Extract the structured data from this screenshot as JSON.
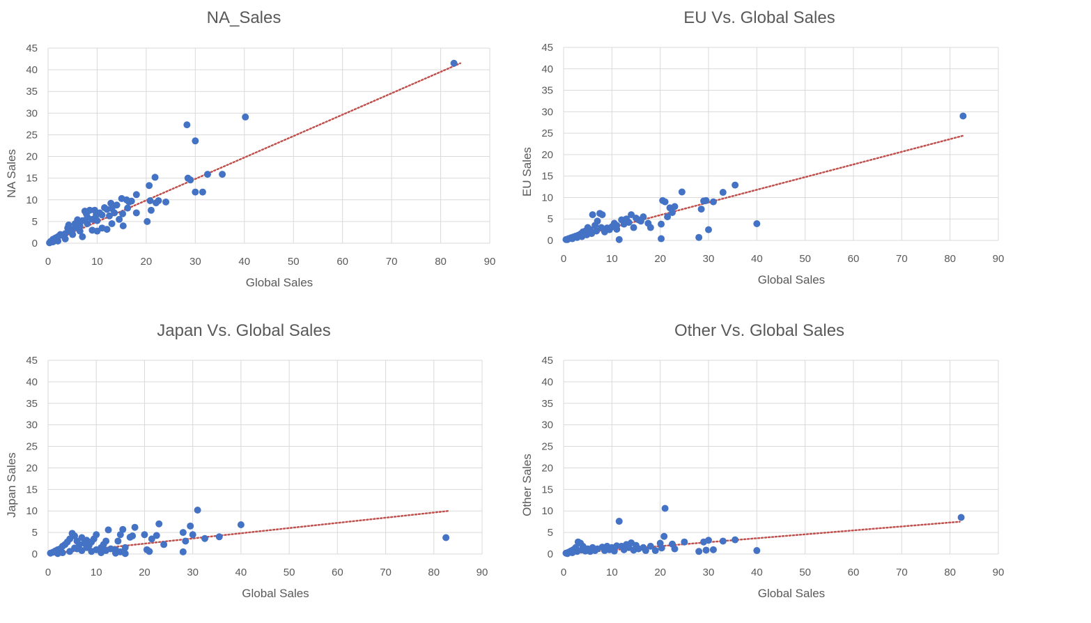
{
  "colors": {
    "point": "#4472C4",
    "trend": "#C0504D",
    "grid": "#D9D9D9",
    "text": "#595959"
  },
  "chart_data": [
    {
      "type": "scatter",
      "title": "NA_Sales",
      "xlabel": "Global Sales",
      "ylabel": "NA Sales",
      "xlim": [
        0,
        90
      ],
      "ylim": [
        0,
        45
      ],
      "xticks": [
        "0",
        "10",
        "20",
        "30",
        "40",
        "50",
        "60",
        "70",
        "80",
        "90"
      ],
      "yticks": [
        "0",
        "5",
        "10",
        "15",
        "20",
        "25",
        "30",
        "35",
        "40",
        "45"
      ],
      "grid": true,
      "trendline": {
        "style": "dotted",
        "from": [
          0,
          0
        ],
        "to": [
          84,
          41.5
        ]
      },
      "points": [
        [
          82.7,
          41.5
        ],
        [
          40.2,
          29.1
        ],
        [
          28.3,
          27.3
        ],
        [
          30,
          23.6
        ],
        [
          35.5,
          15.9
        ],
        [
          32.5,
          15.9
        ],
        [
          28.5,
          15
        ],
        [
          29,
          14.6
        ],
        [
          30,
          11.8
        ],
        [
          31.5,
          11.8
        ],
        [
          21.8,
          15.2
        ],
        [
          20.6,
          13.3
        ],
        [
          24,
          9.5
        ],
        [
          22.5,
          9.8
        ],
        [
          22,
          9.3
        ],
        [
          20.8,
          9.8
        ],
        [
          21,
          7.6
        ],
        [
          20.2,
          5
        ],
        [
          18,
          7
        ],
        [
          18,
          11.2
        ],
        [
          17,
          9.7
        ],
        [
          16.5,
          9.5
        ],
        [
          16,
          10
        ],
        [
          15,
          10.3
        ],
        [
          15.2,
          6.8
        ],
        [
          15.3,
          4
        ],
        [
          14,
          8.8
        ],
        [
          13.5,
          7
        ],
        [
          13,
          8
        ],
        [
          12.5,
          6.3
        ],
        [
          12,
          7.8
        ],
        [
          11.5,
          8.2
        ],
        [
          11,
          6.5
        ],
        [
          10.5,
          7
        ],
        [
          10,
          5.2
        ],
        [
          9.5,
          7.6
        ],
        [
          9,
          5.5
        ],
        [
          8.5,
          7.6
        ],
        [
          8,
          4.5
        ],
        [
          7.5,
          7.4
        ],
        [
          7,
          5.2
        ],
        [
          6.5,
          4
        ],
        [
          6,
          3.5
        ],
        [
          5.5,
          4.5
        ],
        [
          5,
          3.2
        ],
        [
          4.5,
          2.8
        ],
        [
          4,
          3.5
        ],
        [
          3.5,
          2.2
        ],
        [
          3,
          1.8
        ],
        [
          2.5,
          2
        ],
        [
          2,
          1.5
        ],
        [
          1.5,
          1.2
        ],
        [
          1,
          0.9
        ],
        [
          0.5,
          0.4
        ],
        [
          11,
          3.5
        ],
        [
          13,
          4.5
        ],
        [
          14.5,
          5.5
        ],
        [
          9,
          3
        ],
        [
          8,
          6
        ],
        [
          6.5,
          2.8
        ],
        [
          12,
          3.2
        ],
        [
          10,
          2.8
        ],
        [
          7,
          1.5
        ],
        [
          5,
          2
        ],
        [
          3.5,
          1
        ],
        [
          2,
          0.5
        ],
        [
          1,
          0.3
        ],
        [
          0.3,
          0.1
        ],
        [
          16.2,
          8.1
        ],
        [
          12.8,
          9.2
        ],
        [
          9.8,
          6.5
        ],
        [
          7.8,
          6.8
        ],
        [
          6,
          5.4
        ],
        [
          4.2,
          4.2
        ]
      ]
    },
    {
      "type": "scatter",
      "title": "EU Vs. Global Sales",
      "xlabel": "Global Sales",
      "ylabel": "EU Sales",
      "xlim": [
        0,
        90
      ],
      "ylim": [
        0,
        45
      ],
      "xticks": [
        "0",
        "10",
        "20",
        "30",
        "40",
        "50",
        "60",
        "70",
        "80",
        "90"
      ],
      "yticks": [
        "0",
        "5",
        "10",
        "15",
        "20",
        "25",
        "30",
        "35",
        "40",
        "45"
      ],
      "grid": true,
      "trendline": {
        "style": "dotted",
        "from": [
          0,
          0
        ],
        "to": [
          83,
          24.5
        ]
      },
      "points": [
        [
          82.7,
          29
        ],
        [
          40,
          3.9
        ],
        [
          35.5,
          12.9
        ],
        [
          33,
          11.2
        ],
        [
          31,
          9
        ],
        [
          30,
          2.5
        ],
        [
          29.5,
          9.3
        ],
        [
          29,
          9.2
        ],
        [
          28.5,
          7.3
        ],
        [
          28,
          0.7
        ],
        [
          24.5,
          11.3
        ],
        [
          23,
          7.9
        ],
        [
          22.5,
          6.5
        ],
        [
          22,
          7.6
        ],
        [
          21,
          9
        ],
        [
          20.5,
          9.3
        ],
        [
          20.2,
          3.8
        ],
        [
          20.2,
          0.4
        ],
        [
          21.5,
          5.5
        ],
        [
          18,
          3
        ],
        [
          17.5,
          4
        ],
        [
          16.5,
          5.5
        ],
        [
          16,
          4.5
        ],
        [
          15,
          5.2
        ],
        [
          14.5,
          3
        ],
        [
          14,
          6
        ],
        [
          13,
          5
        ],
        [
          12,
          4.8
        ],
        [
          11.5,
          0.2
        ],
        [
          11,
          3.5
        ],
        [
          10,
          3.2
        ],
        [
          9,
          2.9
        ],
        [
          8,
          6
        ],
        [
          7.5,
          6.3
        ],
        [
          7,
          4.5
        ],
        [
          6.5,
          3.5
        ],
        [
          6,
          6
        ],
        [
          5.5,
          2.5
        ],
        [
          5,
          3
        ],
        [
          4.5,
          2.2
        ],
        [
          4,
          2
        ],
        [
          3.5,
          1.5
        ],
        [
          3,
          1.2
        ],
        [
          2.5,
          1
        ],
        [
          2,
          0.8
        ],
        [
          1.5,
          0.6
        ],
        [
          1,
          0.4
        ],
        [
          0.5,
          0.2
        ],
        [
          12.5,
          3.8
        ],
        [
          13.5,
          4.2
        ],
        [
          9.5,
          2.5
        ],
        [
          8.5,
          2
        ],
        [
          7.8,
          3
        ],
        [
          6.8,
          2.2
        ],
        [
          5.8,
          1.6
        ],
        [
          4.8,
          1.3
        ],
        [
          3.8,
          0.9
        ],
        [
          2.8,
          0.7
        ],
        [
          1.8,
          0.4
        ],
        [
          0.8,
          0.2
        ],
        [
          15.5,
          4.8
        ],
        [
          11,
          2.6
        ],
        [
          10.5,
          4
        ]
      ]
    },
    {
      "type": "scatter",
      "title": "Japan Vs. Global Sales",
      "xlabel": "Global Sales",
      "ylabel": "Japan Sales",
      "xlim": [
        0,
        90
      ],
      "ylim": [
        0,
        45
      ],
      "xticks": [
        "0",
        "10",
        "20",
        "30",
        "40",
        "50",
        "60",
        "70",
        "80",
        "90"
      ],
      "yticks": [
        "0",
        "5",
        "10",
        "15",
        "20",
        "25",
        "30",
        "35",
        "40",
        "45"
      ],
      "grid": true,
      "trendline": {
        "style": "dotted",
        "from": [
          0,
          0
        ],
        "to": [
          83,
          10
        ]
      },
      "points": [
        [
          82.5,
          3.8
        ],
        [
          40,
          6.8
        ],
        [
          35.5,
          4
        ],
        [
          32.5,
          3.6
        ],
        [
          31,
          10.2
        ],
        [
          30,
          4.5
        ],
        [
          29.5,
          6.5
        ],
        [
          28.5,
          3
        ],
        [
          28,
          5
        ],
        [
          28,
          0.5
        ],
        [
          24,
          2.2
        ],
        [
          23,
          7
        ],
        [
          22.5,
          4.3
        ],
        [
          21.5,
          3.5
        ],
        [
          21,
          0.6
        ],
        [
          20.5,
          1
        ],
        [
          20,
          4.5
        ],
        [
          18,
          6.2
        ],
        [
          17.5,
          4.2
        ],
        [
          17,
          3.9
        ],
        [
          16,
          1.5
        ],
        [
          15.5,
          5.7
        ],
        [
          15,
          4.5
        ],
        [
          14.5,
          3
        ],
        [
          14,
          1
        ],
        [
          12.5,
          5.6
        ],
        [
          12,
          3
        ],
        [
          11.5,
          2.2
        ],
        [
          11,
          1.5
        ],
        [
          10,
          4.5
        ],
        [
          9.5,
          3.5
        ],
        [
          9,
          2.8
        ],
        [
          8.5,
          2
        ],
        [
          8,
          3.2
        ],
        [
          7.5,
          2.5
        ],
        [
          7,
          3.8
        ],
        [
          6.5,
          2.2
        ],
        [
          6,
          3
        ],
        [
          5.5,
          4.2
        ],
        [
          5,
          4.8
        ],
        [
          4.5,
          3.5
        ],
        [
          4,
          2.8
        ],
        [
          3.5,
          2.2
        ],
        [
          3,
          1.8
        ],
        [
          2.5,
          1.2
        ],
        [
          2,
          1
        ],
        [
          1.5,
          0.7
        ],
        [
          1,
          0.4
        ],
        [
          0.5,
          0.2
        ],
        [
          6,
          1.2
        ],
        [
          7,
          0.8
        ],
        [
          8,
          1.5
        ],
        [
          9,
          0.6
        ],
        [
          10,
          1
        ],
        [
          11,
          0.3
        ],
        [
          12,
          0.8
        ],
        [
          13,
          1.2
        ],
        [
          14,
          0.2
        ],
        [
          15,
          0.5
        ],
        [
          16,
          0.1
        ],
        [
          3,
          0.3
        ],
        [
          2,
          0.1
        ],
        [
          4.5,
          0.6
        ],
        [
          5.5,
          1.4
        ]
      ]
    },
    {
      "type": "scatter",
      "title": "Other Vs. Global Sales",
      "xlabel": "Global Sales",
      "ylabel": "Other Sales",
      "xlim": [
        0,
        90
      ],
      "ylim": [
        0,
        45
      ],
      "xticks": [
        "0",
        "10",
        "20",
        "30",
        "40",
        "50",
        "60",
        "70",
        "80",
        "90"
      ],
      "yticks": [
        "0",
        "5",
        "10",
        "15",
        "20",
        "25",
        "30",
        "35",
        "40",
        "45"
      ],
      "grid": true,
      "trendline": {
        "style": "dotted",
        "from": [
          0,
          0
        ],
        "to": [
          82,
          7.5
        ]
      },
      "points": [
        [
          82.3,
          8.5
        ],
        [
          40,
          0.8
        ],
        [
          35.5,
          3.3
        ],
        [
          33,
          3
        ],
        [
          31,
          1
        ],
        [
          30,
          3.2
        ],
        [
          29.5,
          0.9
        ],
        [
          29,
          2.8
        ],
        [
          28,
          0.6
        ],
        [
          25,
          2.8
        ],
        [
          23,
          1.2
        ],
        [
          22.5,
          2.3
        ],
        [
          21,
          10.6
        ],
        [
          20.8,
          4.1
        ],
        [
          20.3,
          1.4
        ],
        [
          20,
          2.5
        ],
        [
          18,
          1.8
        ],
        [
          16.5,
          1.5
        ],
        [
          15.5,
          1.2
        ],
        [
          15,
          2
        ],
        [
          14,
          2.6
        ],
        [
          13,
          2.2
        ],
        [
          12,
          1.8
        ],
        [
          11.5,
          7.6
        ],
        [
          11,
          1.9
        ],
        [
          10,
          1.5
        ],
        [
          9,
          1.8
        ],
        [
          8,
          1.6
        ],
        [
          7,
          1.2
        ],
        [
          6,
          1.5
        ],
        [
          5,
          1.2
        ],
        [
          4,
          1.8
        ],
        [
          3.5,
          2.5
        ],
        [
          3,
          2.8
        ],
        [
          2.5,
          1.5
        ],
        [
          2,
          1
        ],
        [
          1.5,
          0.7
        ],
        [
          1,
          0.4
        ],
        [
          0.5,
          0.2
        ],
        [
          12.5,
          1
        ],
        [
          13.5,
          1.5
        ],
        [
          9.5,
          1
        ],
        [
          8.5,
          0.8
        ],
        [
          6.5,
          0.8
        ],
        [
          5.5,
          0.6
        ],
        [
          4.5,
          0.7
        ],
        [
          3.8,
          1
        ],
        [
          2.8,
          0.6
        ],
        [
          1.8,
          0.3
        ],
        [
          0.8,
          0.1
        ],
        [
          17,
          0.8
        ],
        [
          19,
          0.8
        ],
        [
          14.5,
          0.9
        ],
        [
          10.5,
          0.7
        ]
      ]
    }
  ]
}
